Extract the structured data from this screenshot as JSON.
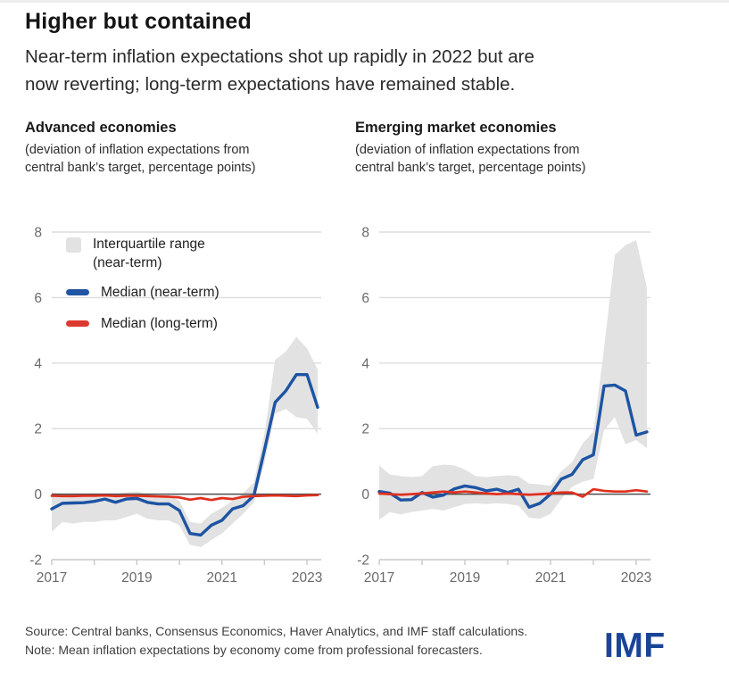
{
  "page": {
    "title": "Higher but contained",
    "subtitle_line1": "Near-term inflation expectations shot up rapidly in 2022 but are",
    "subtitle_line2": "now reverting; long-term expectations have remained stable."
  },
  "legend": {
    "items": [
      {
        "label_line1": "Interquartile range",
        "label_line2": "(near-term)",
        "swatch_color": "#e2e2e2",
        "swatch_type": "area"
      },
      {
        "label": "Median (near-term)",
        "swatch_color": "#2155a4",
        "swatch_type": "line"
      },
      {
        "label": "Median (long-term)",
        "swatch_color": "#dc3a30",
        "swatch_type": "line"
      }
    ]
  },
  "footer": {
    "source": "Source: Central banks, Consensus Economics, Haver Analytics, and IMF staff calculations.",
    "note": "Note: Mean inflation expectations by economy come from professional forecasters.",
    "logo": "IMF",
    "logo_color": "#1a4496"
  },
  "style_colors": {
    "gridline": "#dcdcdc",
    "zero_line": "#4f4f4f",
    "axis_line": "#c8c8c8",
    "tick_label": "#6a6a6a",
    "band": "#e2e2e2",
    "near_term": "#1d54a3",
    "long_term": "#e0301e"
  },
  "chart_data": [
    {
      "type": "line",
      "title": "Advanced economies",
      "subtitle_line1": "(deviation of inflation expectations from",
      "subtitle_line2": "central bank’s target, percentage points)",
      "x": [
        2017.0,
        2017.25,
        2017.5,
        2017.75,
        2018.0,
        2018.25,
        2018.5,
        2018.75,
        2019.0,
        2019.25,
        2019.5,
        2019.75,
        2020.0,
        2020.25,
        2020.5,
        2020.75,
        2021.0,
        2021.25,
        2021.5,
        2021.75,
        2022.0,
        2022.25,
        2022.5,
        2022.75,
        2023.0,
        2023.25
      ],
      "band": {
        "name": "Interquartile range (near-term)",
        "color": "#e2e2e2",
        "upper": [
          0.05,
          0.0,
          0.0,
          0.0,
          0.02,
          0.0,
          0.0,
          0.05,
          0.08,
          0.0,
          -0.03,
          -0.05,
          -0.2,
          -0.85,
          -0.9,
          -0.6,
          -0.42,
          -0.2,
          0.03,
          0.35,
          1.85,
          4.1,
          4.35,
          4.8,
          4.45,
          3.8
        ],
        "lower": [
          -1.15,
          -0.85,
          -0.9,
          -0.85,
          -0.85,
          -0.8,
          -0.8,
          -0.7,
          -0.6,
          -0.75,
          -0.8,
          -0.8,
          -0.95,
          -1.55,
          -1.62,
          -1.4,
          -1.2,
          -0.9,
          -0.6,
          -0.25,
          0.95,
          2.45,
          2.6,
          2.35,
          2.3,
          1.85
        ]
      },
      "series": [
        {
          "name": "Median (near-term)",
          "color": "#1d54a3",
          "values": [
            -0.45,
            -0.28,
            -0.27,
            -0.26,
            -0.22,
            -0.15,
            -0.25,
            -0.15,
            -0.13,
            -0.25,
            -0.3,
            -0.3,
            -0.5,
            -1.2,
            -1.25,
            -0.95,
            -0.8,
            -0.45,
            -0.35,
            -0.05,
            1.35,
            2.8,
            3.15,
            3.65,
            3.65,
            2.65
          ]
        },
        {
          "name": "Median (long-term)",
          "color": "#e0301e",
          "values": [
            -0.05,
            -0.06,
            -0.06,
            -0.05,
            -0.05,
            -0.04,
            -0.06,
            -0.05,
            -0.05,
            -0.06,
            -0.07,
            -0.08,
            -0.1,
            -0.17,
            -0.12,
            -0.18,
            -0.12,
            -0.15,
            -0.08,
            -0.06,
            -0.05,
            -0.04,
            -0.05,
            -0.06,
            -0.04,
            -0.03
          ]
        }
      ],
      "ylim": [
        -2,
        8
      ],
      "yticks": [
        8,
        6,
        4,
        2,
        0,
        -2
      ],
      "xticks": [
        2017,
        2018,
        2019,
        2020,
        2021,
        2022,
        2023
      ],
      "x_labeled_ticks": [
        2017,
        2019,
        2021,
        2023
      ],
      "grid": true,
      "legend_position": "top-left"
    },
    {
      "type": "line",
      "title": "Emerging market economies",
      "subtitle_line1": "(deviation of inflation expectations from",
      "subtitle_line2": "central bank’s target, percentage points)",
      "x": [
        2017.0,
        2017.25,
        2017.5,
        2017.75,
        2018.0,
        2018.25,
        2018.5,
        2018.75,
        2019.0,
        2019.25,
        2019.5,
        2019.75,
        2020.0,
        2020.25,
        2020.5,
        2020.75,
        2021.0,
        2021.25,
        2021.5,
        2021.75,
        2022.0,
        2022.25,
        2022.5,
        2022.75,
        2023.0,
        2023.25
      ],
      "band": {
        "name": "Interquartile range (near-term)",
        "color": "#e2e2e2",
        "upper": [
          0.87,
          0.6,
          0.55,
          0.52,
          0.55,
          0.85,
          0.9,
          0.88,
          0.75,
          0.55,
          0.52,
          0.55,
          0.58,
          0.55,
          0.32,
          0.3,
          0.25,
          0.7,
          0.97,
          1.55,
          1.9,
          4.45,
          7.3,
          7.6,
          7.75,
          6.3
        ],
        "lower": [
          -0.78,
          -0.55,
          -0.62,
          -0.55,
          -0.5,
          -0.45,
          -0.5,
          -0.4,
          -0.3,
          -0.28,
          -0.3,
          -0.28,
          -0.3,
          -0.35,
          -0.72,
          -0.75,
          -0.6,
          -0.15,
          0.22,
          0.38,
          0.46,
          1.95,
          2.35,
          1.52,
          1.65,
          1.4
        ]
      },
      "series": [
        {
          "name": "Median (near-term)",
          "color": "#1d54a3",
          "values": [
            0.08,
            0.03,
            -0.18,
            -0.17,
            0.05,
            -0.09,
            -0.03,
            0.16,
            0.25,
            0.2,
            0.1,
            0.15,
            0.05,
            0.15,
            -0.4,
            -0.28,
            0.0,
            0.46,
            0.6,
            1.05,
            1.2,
            3.3,
            3.33,
            3.15,
            1.8,
            1.9
          ]
        },
        {
          "name": "Median (long-term)",
          "color": "#e0301e",
          "values": [
            0.02,
            0.0,
            -0.02,
            0.0,
            0.02,
            0.05,
            0.08,
            0.05,
            0.08,
            0.05,
            0.02,
            0.0,
            0.02,
            0.0,
            -0.02,
            0.0,
            0.02,
            0.05,
            0.05,
            -0.08,
            0.15,
            0.1,
            0.08,
            0.08,
            0.12,
            0.08
          ]
        }
      ],
      "ylim": [
        -2,
        8
      ],
      "yticks": [
        8,
        6,
        4,
        2,
        0,
        -2
      ],
      "xticks": [
        2017,
        2018,
        2019,
        2020,
        2021,
        2022,
        2023
      ],
      "x_labeled_ticks": [
        2017,
        2019,
        2021,
        2023
      ],
      "grid": true,
      "legend_position": "none"
    }
  ]
}
